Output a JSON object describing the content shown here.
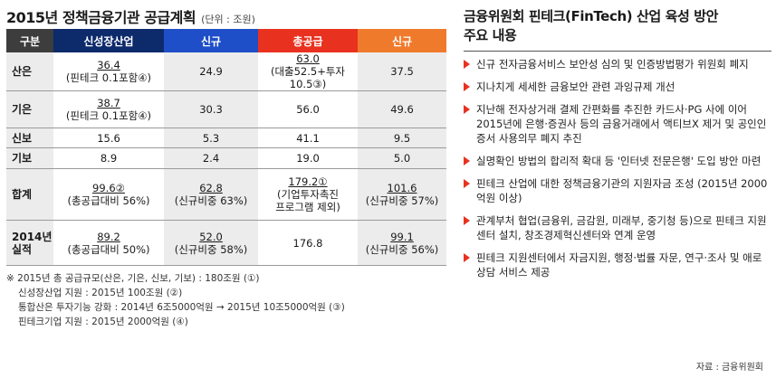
{
  "title": "2015년 정책금융기관 공급계획",
  "unit": "(단위 : 조원)",
  "headers": [
    "구분",
    "신성장산업",
    "신규",
    "총공급",
    "신규"
  ],
  "header_colors": [
    "#3d3d3d",
    "#0d2a6b",
    "#1f4fc8",
    "#e8321f",
    "#f07a2c"
  ],
  "rows": [
    {
      "cat": "산은",
      "c1": "36.4",
      "c1b": "(핀테크 0.1포함④)",
      "c2": "24.9",
      "c3": "63.0",
      "c3b": "(대출52.5+투자10.5③)",
      "c4": "37.5",
      "c4b": ""
    },
    {
      "cat": "기은",
      "c1": "38.7",
      "c1b": "(핀테크 0.1포함④)",
      "c2": "30.3",
      "c3": "56.0",
      "c3b": "",
      "c4": "49.6",
      "c4b": ""
    },
    {
      "cat": "신보",
      "c1": "15.6",
      "c1b": "",
      "c2": "5.3",
      "c3": "41.1",
      "c3b": "",
      "c4": "9.5",
      "c4b": ""
    },
    {
      "cat": "기보",
      "c1": "8.9",
      "c1b": "",
      "c2": "2.4",
      "c3": "19.0",
      "c3b": "",
      "c4": "5.0",
      "c4b": ""
    },
    {
      "cat": "합계",
      "c1": "99.6②",
      "c1b": "(총공급대비 56%)",
      "c2": "62.8",
      "c2b": "(신규비중 63%)",
      "c3": "179.2①",
      "c3b": "(기업투자촉진",
      "c3c": "프로그램 제외)",
      "c4": "101.6",
      "c4b": "(신규비중 57%)"
    },
    {
      "cat": "2014년",
      "cat2": "실적",
      "c1": "89.2",
      "c1b": "(총공급대비 50%)",
      "c2": "52.0",
      "c2b": "(신규비중 58%)",
      "c3": "176.8",
      "c3b": "",
      "c4": "99.1",
      "c4b": "(신규비중 56%)"
    }
  ],
  "notes": [
    "※ 2015년 총 공급규모(산은, 기은, 신보, 기보) : 180조원 (①)",
    "신성장산업 지원 : 2015년 100조원 (②)",
    "통합산은 투자기능 강화 : 2014년 6조5000억원 → 2015년 10조5000억원 (③)",
    "핀테크기업 지원 : 2015년 2000억원 (④)"
  ],
  "right_title_1": "금융위원회 핀테크(FinTech) 산업 육성 방안",
  "right_title_2": "주요 내용",
  "bullets": [
    "신규 전자금융서비스 보안성 심의 및 인증방법평가 위원회 폐지",
    "지나치게 세세한 금융보안 관련 과잉규제 개선",
    "지난해 전자상거래 결제 간편화를 추진한 카드사·PG 사에 이어 2015년에 은행·증권사 등의 금융거래에서 액티브X 제거 및 공인인증서 사용의무 폐지 추진",
    "실명확인 방법의 합리적 확대 등 '인터넷 전문은행' 도입 방안 마련",
    "핀테크 산업에 대한 정책금융기관의 지원자금 조성 (2015년 2000억원 이상)",
    "관계부처 협업(금융위, 금감원, 미래부, 중기청 등)으로 핀테크 지원센터 설치, 창조경제혁신센터와 연계 운영",
    "핀테크 지원센터에서 자금지원, 행정·법률 자문, 연구·조사 및 애로 상담 서비스 제공"
  ],
  "source": "자료 : 금융위원회"
}
